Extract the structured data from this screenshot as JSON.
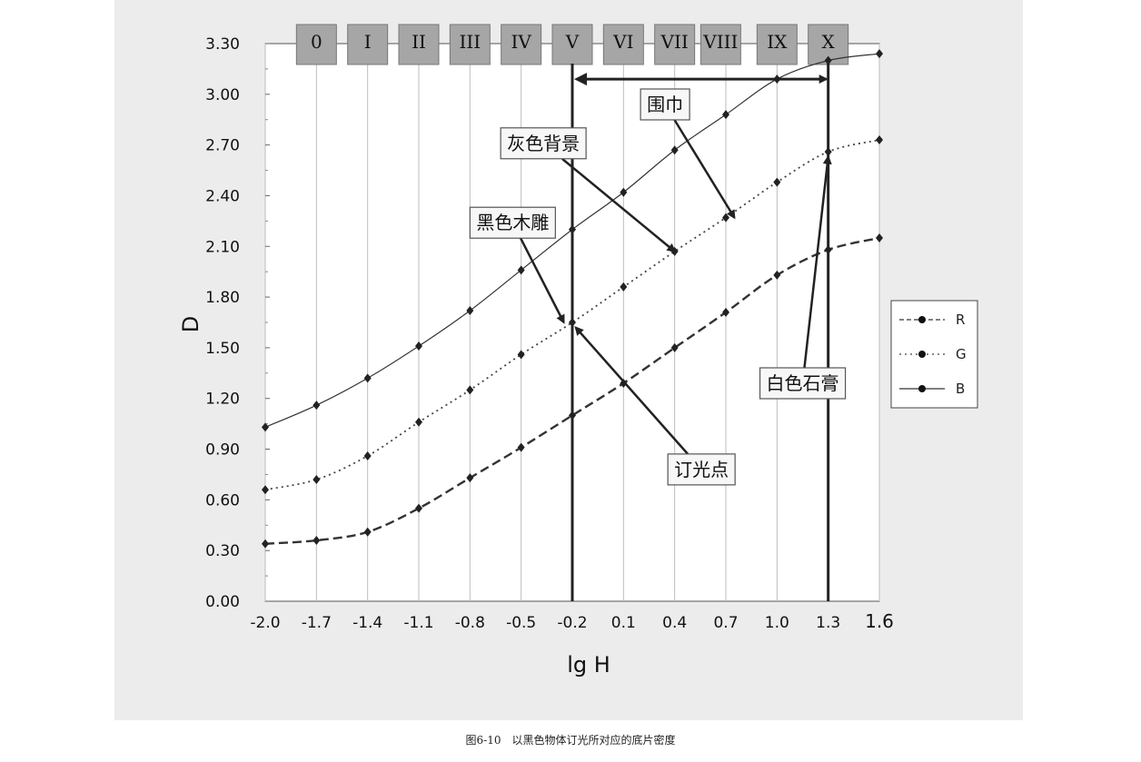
{
  "chart_data": {
    "type": "line",
    "xlabel": "lg H",
    "ylabel": "D",
    "xlim": [
      -2.0,
      1.6
    ],
    "ylim": [
      0.0,
      3.3
    ],
    "x_ticks": [
      "-2.0",
      "-1.7",
      "-1.4",
      "-1.1",
      "-0.8",
      "-0.5",
      "-0.2",
      "0.1",
      "0.4",
      "0.7",
      "1.0",
      "1.3",
      "1.6"
    ],
    "y_ticks": [
      "0.00",
      "0.30",
      "0.60",
      "0.90",
      "1.20",
      "1.50",
      "1.80",
      "2.10",
      "2.40",
      "2.70",
      "3.00",
      "3.30"
    ],
    "zones": [
      {
        "label": "0",
        "x": -1.7
      },
      {
        "label": "I",
        "x": -1.4
      },
      {
        "label": "II",
        "x": -1.1
      },
      {
        "label": "III",
        "x": -0.8
      },
      {
        "label": "IV",
        "x": -0.5
      },
      {
        "label": "V",
        "x": -0.2
      },
      {
        "label": "VI",
        "x": 0.1
      },
      {
        "label": "VII",
        "x": 0.4
      },
      {
        "label": "VIII",
        "x": 0.67
      },
      {
        "label": "IX",
        "x": 1.0
      },
      {
        "label": "X",
        "x": 1.3
      }
    ],
    "x": [
      -2.0,
      -1.7,
      -1.4,
      -1.1,
      -0.8,
      -0.5,
      -0.2,
      0.1,
      0.4,
      0.7,
      1.0,
      1.3,
      1.6
    ],
    "series": [
      {
        "name": "R",
        "style": "dashed",
        "values": [
          0.34,
          0.36,
          0.41,
          0.55,
          0.73,
          0.91,
          1.1,
          1.29,
          1.5,
          1.71,
          1.93,
          2.08,
          2.15
        ]
      },
      {
        "name": "G",
        "style": "dotted",
        "values": [
          0.66,
          0.72,
          0.86,
          1.06,
          1.25,
          1.46,
          1.65,
          1.86,
          2.07,
          2.27,
          2.48,
          2.66,
          2.73
        ]
      },
      {
        "name": "B",
        "style": "solid",
        "values": [
          1.03,
          1.16,
          1.32,
          1.51,
          1.72,
          1.96,
          2.2,
          2.42,
          2.67,
          2.88,
          3.09,
          3.2,
          3.24
        ]
      }
    ],
    "vertical_lines": [
      -0.2,
      1.3
    ],
    "range_arrow": {
      "from": -0.2,
      "to": 1.3,
      "y": 3.09
    },
    "annotations": [
      {
        "text": "围巾",
        "box": [
          0.2,
          2.94
        ],
        "target": [
          0.75,
          2.27
        ]
      },
      {
        "text": "灰色背景",
        "box": [
          -0.62,
          2.71
        ],
        "target": [
          0.4,
          2.07
        ]
      },
      {
        "text": "黑色木雕",
        "box": [
          -0.8,
          2.24
        ],
        "target": [
          -0.25,
          1.65
        ]
      },
      {
        "text": "订光点",
        "box": [
          0.36,
          0.78
        ],
        "target": [
          -0.18,
          1.62
        ]
      },
      {
        "text": "白色石膏",
        "box": [
          0.9,
          1.29
        ],
        "target": [
          1.3,
          2.63
        ]
      }
    ],
    "legend_position": "right"
  },
  "caption": "图6-10　以黑色物体订光所对应的底片密度"
}
